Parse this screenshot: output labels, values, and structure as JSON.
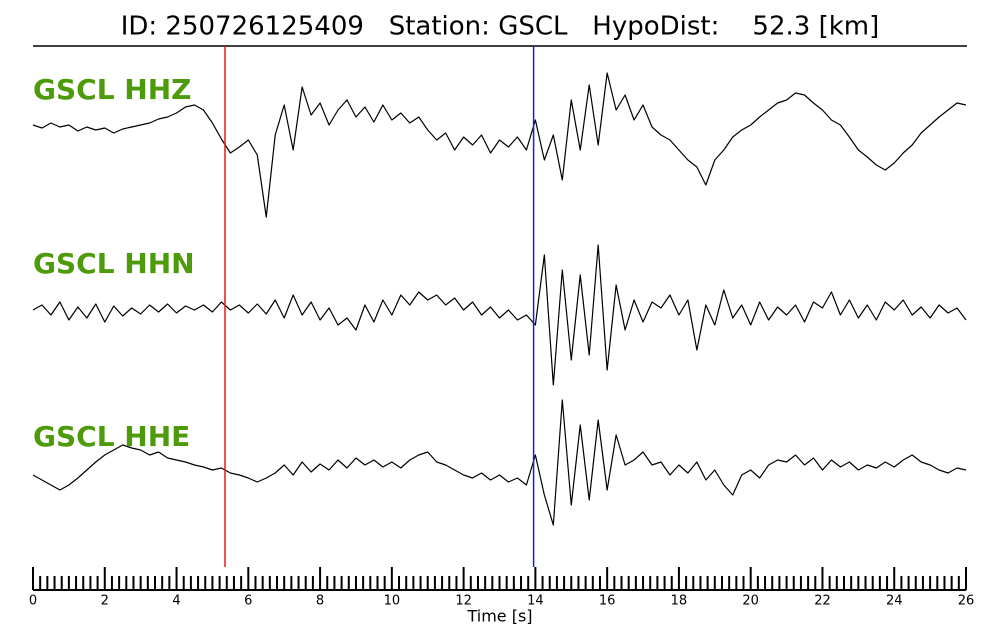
{
  "chart_data": {
    "type": "waveform",
    "title": "ID: 250726125409   Station: GSCL   HypoDist:    52.3 [km]",
    "xlabel": "Time [s]",
    "xlim": [
      0,
      26
    ],
    "xticks": [
      0,
      2,
      4,
      6,
      8,
      10,
      12,
      14,
      16,
      18,
      20,
      22,
      24,
      26
    ],
    "xminor_per_major": 10,
    "label_color": "#4d9a0a",
    "markers": [
      {
        "x": 5.35,
        "color": "#e8191c"
      },
      {
        "x": 13.95,
        "color": "#1a1ae6"
      }
    ],
    "x": [
      0,
      0.25,
      0.5,
      0.75,
      1,
      1.25,
      1.5,
      1.75,
      2,
      2.25,
      2.5,
      2.75,
      3,
      3.25,
      3.5,
      3.75,
      4,
      4.25,
      4.5,
      4.75,
      5,
      5.25,
      5.5,
      5.75,
      6,
      6.25,
      6.5,
      6.75,
      7,
      7.25,
      7.5,
      7.75,
      8,
      8.25,
      8.5,
      8.75,
      9,
      9.25,
      9.5,
      9.75,
      10,
      10.25,
      10.5,
      10.75,
      11,
      11.25,
      11.5,
      11.75,
      12,
      12.25,
      12.5,
      12.75,
      13,
      13.25,
      13.5,
      13.75,
      14,
      14.25,
      14.5,
      14.75,
      15,
      15.25,
      15.5,
      15.75,
      16,
      16.25,
      16.5,
      16.75,
      17,
      17.25,
      17.5,
      17.75,
      18,
      18.25,
      18.5,
      18.75,
      19,
      19.25,
      19.5,
      19.75,
      20,
      20.25,
      20.5,
      20.75,
      21,
      21.25,
      21.5,
      21.75,
      22,
      22.25,
      22.5,
      22.75,
      23,
      23.25,
      23.5,
      23.75,
      24,
      24.25,
      24.5,
      24.75,
      25,
      25.25,
      25.5,
      25.75,
      26
    ],
    "series": [
      {
        "name": "GSCL HHZ",
        "color": "#000000",
        "values": [
          0,
          -3,
          2,
          -2,
          0,
          -6,
          -2,
          -5,
          -3,
          -8,
          -4,
          -2,
          0,
          2,
          6,
          8,
          12,
          18,
          20,
          15,
          2,
          -14,
          -28,
          -22,
          -15,
          -30,
          -92,
          -10,
          20,
          -25,
          38,
          10,
          22,
          0,
          15,
          25,
          8,
          18,
          3,
          20,
          5,
          12,
          2,
          8,
          -5,
          -15,
          -8,
          -25,
          -12,
          -20,
          -10,
          -28,
          -15,
          -22,
          -12,
          -25,
          5,
          -35,
          -10,
          -55,
          25,
          -25,
          40,
          -20,
          52,
          15,
          30,
          5,
          20,
          -2,
          -10,
          -15,
          -25,
          -35,
          -42,
          -60,
          -35,
          -25,
          -12,
          -5,
          0,
          8,
          15,
          22,
          25,
          32,
          30,
          22,
          15,
          5,
          0,
          -12,
          -25,
          -32,
          -40,
          -45,
          -38,
          -28,
          -20,
          -8,
          0,
          8,
          15,
          22,
          20
        ]
      },
      {
        "name": "GSCL HHN",
        "color": "#000000",
        "values": [
          0,
          5,
          -5,
          8,
          -10,
          3,
          -8,
          6,
          -12,
          4,
          -6,
          2,
          -4,
          5,
          -2,
          6,
          -3,
          4,
          0,
          5,
          -2,
          8,
          0,
          5,
          -3,
          6,
          -4,
          10,
          -8,
          15,
          -5,
          8,
          -10,
          2,
          -15,
          -8,
          -20,
          5,
          -12,
          10,
          -5,
          15,
          5,
          18,
          10,
          15,
          5,
          12,
          0,
          8,
          -5,
          3,
          -8,
          0,
          -10,
          -5,
          -15,
          55,
          -75,
          40,
          -50,
          35,
          -45,
          65,
          -60,
          25,
          -20,
          10,
          -12,
          8,
          2,
          15,
          -5,
          10,
          -40,
          5,
          -15,
          20,
          -8,
          5,
          -15,
          8,
          -10,
          3,
          -5,
          5,
          -12,
          8,
          2,
          18,
          -5,
          10,
          -8,
          5,
          -10,
          8,
          0,
          10,
          -5,
          3,
          -8,
          5,
          -3,
          2,
          -10
        ]
      },
      {
        "name": "GSCL HHE",
        "color": "#000000",
        "values": [
          -5,
          -10,
          -15,
          -20,
          -15,
          -8,
          0,
          8,
          15,
          20,
          25,
          22,
          20,
          15,
          18,
          12,
          10,
          8,
          5,
          3,
          0,
          2,
          -3,
          -5,
          -8,
          -12,
          -8,
          -3,
          5,
          -5,
          8,
          -2,
          6,
          0,
          10,
          2,
          12,
          5,
          10,
          3,
          8,
          2,
          10,
          15,
          18,
          8,
          5,
          0,
          -5,
          -8,
          -3,
          -10,
          -5,
          -12,
          -8,
          -15,
          15,
          -25,
          -55,
          70,
          -35,
          45,
          -30,
          50,
          -20,
          35,
          5,
          10,
          18,
          5,
          8,
          -5,
          5,
          -3,
          8,
          -10,
          0,
          -15,
          -25,
          -5,
          0,
          -8,
          5,
          10,
          8,
          15,
          5,
          12,
          0,
          10,
          3,
          8,
          0,
          5,
          2,
          8,
          3,
          10,
          15,
          8,
          5,
          0,
          -3,
          2,
          0
        ]
      }
    ]
  }
}
